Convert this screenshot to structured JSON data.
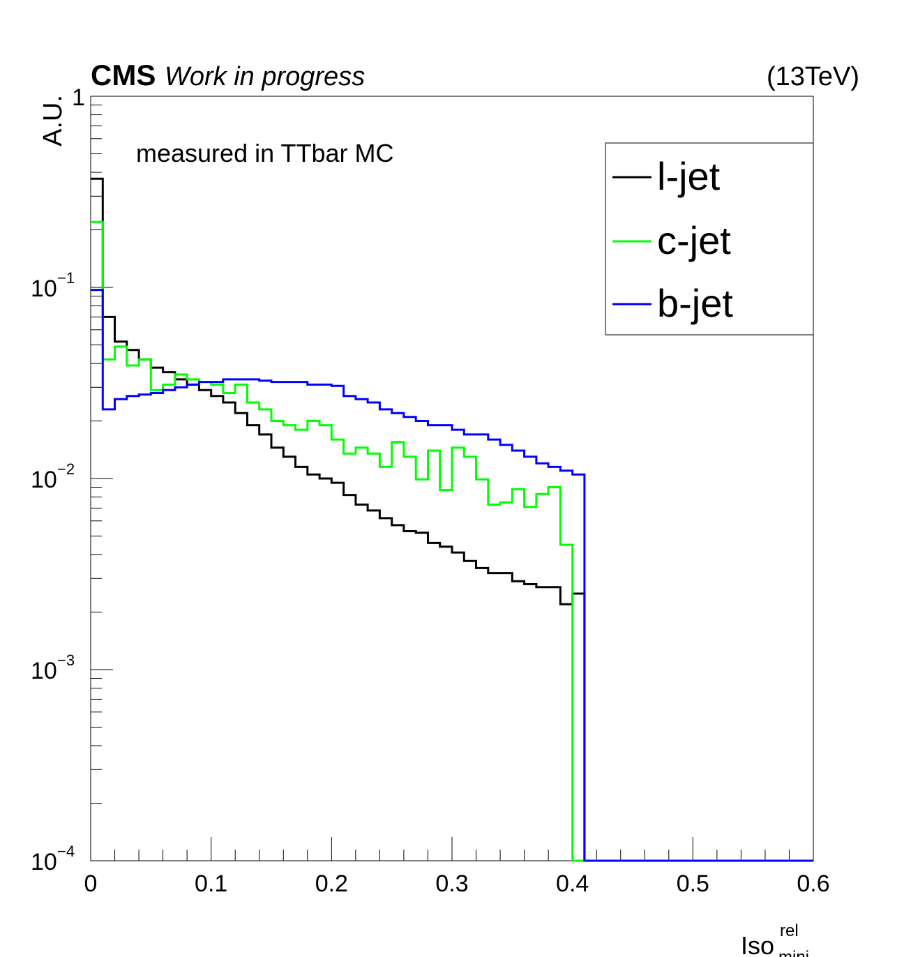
{
  "header": {
    "experiment": "CMS",
    "status": "Work in progress",
    "energy": "(13TeV)"
  },
  "annotation": "measured in TTbar MC",
  "chart_data": {
    "type": "line",
    "style": "step-histogram",
    "xlabel": "Iso",
    "xlabel_sup": "rel",
    "xlabel_sub": "mini",
    "ylabel": "A.U.",
    "xlim": [
      0,
      0.6
    ],
    "ylim": [
      0.0001,
      1
    ],
    "yscale": "log",
    "grid": false,
    "legend_position": "top-right",
    "x_ticks": [
      {
        "value": 0,
        "label": "0"
      },
      {
        "value": 0.1,
        "label": "0.1"
      },
      {
        "value": 0.2,
        "label": "0.2"
      },
      {
        "value": 0.3,
        "label": "0.3"
      },
      {
        "value": 0.4,
        "label": "0.4"
      },
      {
        "value": 0.5,
        "label": "0.5"
      },
      {
        "value": 0.6,
        "label": "0.6"
      }
    ],
    "y_ticks": [
      {
        "value": 1,
        "label": "1"
      },
      {
        "value": 0.1,
        "base": "10",
        "exp": "−1"
      },
      {
        "value": 0.01,
        "base": "10",
        "exp": "−2"
      },
      {
        "value": 0.001,
        "base": "10",
        "exp": "−3"
      },
      {
        "value": 0.0001,
        "base": "10",
        "exp": "−4"
      }
    ],
    "bin_width": 0.01,
    "series": [
      {
        "name": "l-jet",
        "color": "#000000",
        "values": [
          0.37,
          0.07,
          0.052,
          0.047,
          0.042,
          0.038,
          0.036,
          0.033,
          0.031,
          0.029,
          0.027,
          0.025,
          0.022,
          0.019,
          0.017,
          0.0145,
          0.013,
          0.0115,
          0.0105,
          0.01,
          0.0095,
          0.0082,
          0.0073,
          0.0068,
          0.0062,
          0.0057,
          0.0053,
          0.0052,
          0.0046,
          0.0044,
          0.0041,
          0.0037,
          0.0034,
          0.0032,
          0.0032,
          0.0029,
          0.0028,
          0.0027,
          0.0027,
          0.0022,
          0.0025,
          0.0001,
          0.0001,
          0.0001,
          0.0001,
          0.0001,
          0.0001,
          0.0001,
          0.0001,
          0.0001,
          0.0001,
          0.0001,
          0.0001,
          0.0001,
          0.0001,
          0.0001,
          0.0001,
          0.0001,
          0.0001,
          0.0001
        ]
      },
      {
        "name": "c-jet",
        "color": "#00ff00",
        "values": [
          0.22,
          0.042,
          0.049,
          0.039,
          0.042,
          0.029,
          0.031,
          0.035,
          0.033,
          0.032,
          0.031,
          0.028,
          0.031,
          0.025,
          0.023,
          0.02,
          0.019,
          0.018,
          0.02,
          0.019,
          0.016,
          0.0135,
          0.0145,
          0.0135,
          0.0115,
          0.0155,
          0.013,
          0.0099,
          0.014,
          0.0087,
          0.0145,
          0.013,
          0.0099,
          0.0073,
          0.0075,
          0.0088,
          0.0071,
          0.0083,
          0.009,
          0.0045,
          0.0001,
          0.0001,
          0.0001,
          0.0001,
          0.0001,
          0.0001,
          0.0001,
          0.0001,
          0.0001,
          0.0001,
          0.0001,
          0.0001,
          0.0001,
          0.0001,
          0.0001,
          0.0001,
          0.0001,
          0.0001,
          0.0001,
          0.0001
        ]
      },
      {
        "name": "b-jet",
        "color": "#0000ff",
        "values": [
          0.097,
          0.023,
          0.026,
          0.027,
          0.0275,
          0.028,
          0.029,
          0.03,
          0.031,
          0.032,
          0.032,
          0.033,
          0.033,
          0.033,
          0.0325,
          0.032,
          0.032,
          0.032,
          0.031,
          0.031,
          0.0305,
          0.027,
          0.026,
          0.025,
          0.023,
          0.022,
          0.021,
          0.02,
          0.019,
          0.019,
          0.018,
          0.017,
          0.017,
          0.016,
          0.015,
          0.014,
          0.013,
          0.012,
          0.0115,
          0.011,
          0.0105,
          0.0001,
          0.0001,
          0.0001,
          0.0001,
          0.0001,
          0.0001,
          0.0001,
          0.0001,
          0.0001,
          0.0001,
          0.0001,
          0.0001,
          0.0001,
          0.0001,
          0.0001,
          0.0001,
          0.0001,
          0.0001,
          0.0001
        ]
      }
    ]
  }
}
